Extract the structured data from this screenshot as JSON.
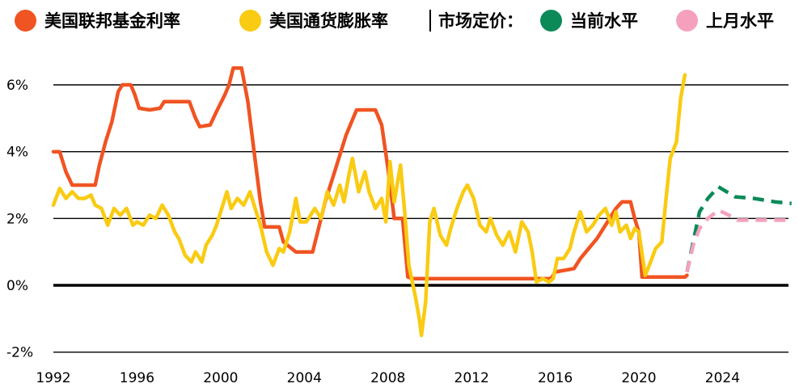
{
  "legend": {
    "fed": "美国联邦基金利率",
    "inflation": "美国通货膨胀率",
    "separator": "|",
    "market": "市场定价：",
    "current": "当前水平",
    "last_month": "上月水平"
  },
  "colors": {
    "fed": "#f05422",
    "inflation": "#f9cb12",
    "current": "#0b8a58",
    "last_month": "#f5a1bd"
  },
  "chart_data": {
    "type": "line",
    "title": "",
    "xlabel": "",
    "ylabel": "",
    "xlim": [
      1992,
      2027.3
    ],
    "ylim": [
      -2,
      6.6
    ],
    "x_ticks": [
      1992,
      1996,
      2000,
      2004,
      2008,
      2012,
      2016,
      2020,
      2024
    ],
    "y_ticks": [
      {
        "value": 6,
        "label": "6%"
      },
      {
        "value": 4,
        "label": "4%"
      },
      {
        "value": 2,
        "label": "2%"
      },
      {
        "value": 0,
        "label": "0%"
      },
      {
        "value": -2,
        "label": "-2%"
      }
    ],
    "grid": true,
    "series": [
      {
        "name": "美国联邦基金利率",
        "style": "solid",
        "points": [
          [
            1992.0,
            4.0
          ],
          [
            1992.3,
            4.0
          ],
          [
            1992.4,
            3.8
          ],
          [
            1992.6,
            3.4
          ],
          [
            1992.9,
            3.0
          ],
          [
            1993.5,
            3.0
          ],
          [
            1994.0,
            3.0
          ],
          [
            1994.2,
            3.6
          ],
          [
            1994.5,
            4.3
          ],
          [
            1994.8,
            4.9
          ],
          [
            1995.1,
            5.8
          ],
          [
            1995.3,
            6.0
          ],
          [
            1995.7,
            6.0
          ],
          [
            1995.9,
            5.7
          ],
          [
            1996.1,
            5.3
          ],
          [
            1996.6,
            5.25
          ],
          [
            1997.1,
            5.3
          ],
          [
            1997.3,
            5.5
          ],
          [
            1997.8,
            5.5
          ],
          [
            1998.5,
            5.5
          ],
          [
            1998.8,
            5.0
          ],
          [
            1999.0,
            4.75
          ],
          [
            1999.5,
            4.8
          ],
          [
            1999.8,
            5.2
          ],
          [
            2000.2,
            5.7
          ],
          [
            2000.4,
            6.0
          ],
          [
            2000.6,
            6.5
          ],
          [
            2001.0,
            6.5
          ],
          [
            2001.3,
            5.5
          ],
          [
            2001.6,
            4.0
          ],
          [
            2001.9,
            2.5
          ],
          [
            2002.1,
            1.75
          ],
          [
            2002.8,
            1.75
          ],
          [
            2003.0,
            1.3
          ],
          [
            2003.6,
            1.0
          ],
          [
            2004.1,
            1.0
          ],
          [
            2004.4,
            1.0
          ],
          [
            2004.6,
            1.5
          ],
          [
            2005.0,
            2.5
          ],
          [
            2005.5,
            3.5
          ],
          [
            2006.0,
            4.5
          ],
          [
            2006.5,
            5.25
          ],
          [
            2007.4,
            5.25
          ],
          [
            2007.7,
            4.8
          ],
          [
            2008.0,
            3.5
          ],
          [
            2008.3,
            2.0
          ],
          [
            2008.7,
            2.0
          ],
          [
            2008.95,
            0.25
          ],
          [
            2009.2,
            0.2
          ],
          [
            2015.8,
            0.2
          ],
          [
            2016.0,
            0.4
          ],
          [
            2016.9,
            0.5
          ],
          [
            2017.2,
            0.8
          ],
          [
            2017.6,
            1.1
          ],
          [
            2018.0,
            1.4
          ],
          [
            2018.5,
            1.9
          ],
          [
            2018.9,
            2.3
          ],
          [
            2019.2,
            2.5
          ],
          [
            2019.6,
            2.5
          ],
          [
            2019.8,
            2.0
          ],
          [
            2020.0,
            1.6
          ],
          [
            2020.15,
            0.25
          ],
          [
            2022.2,
            0.25
          ],
          [
            2022.3,
            0.3
          ]
        ]
      },
      {
        "name": "美国通货膨胀率",
        "style": "solid",
        "points": [
          [
            1992.0,
            2.4
          ],
          [
            1992.3,
            2.9
          ],
          [
            1992.6,
            2.6
          ],
          [
            1992.9,
            2.8
          ],
          [
            1993.2,
            2.6
          ],
          [
            1993.5,
            2.6
          ],
          [
            1993.8,
            2.7
          ],
          [
            1994.0,
            2.4
          ],
          [
            1994.3,
            2.3
          ],
          [
            1994.6,
            1.8
          ],
          [
            1994.9,
            2.3
          ],
          [
            1995.2,
            2.1
          ],
          [
            1995.5,
            2.3
          ],
          [
            1995.8,
            1.8
          ],
          [
            1996.0,
            1.9
          ],
          [
            1996.3,
            1.8
          ],
          [
            1996.6,
            2.1
          ],
          [
            1996.9,
            2.0
          ],
          [
            1997.2,
            2.4
          ],
          [
            1997.5,
            2.1
          ],
          [
            1997.8,
            1.6
          ],
          [
            1998.0,
            1.4
          ],
          [
            1998.3,
            0.9
          ],
          [
            1998.6,
            0.7
          ],
          [
            1998.8,
            1.0
          ],
          [
            1999.1,
            0.7
          ],
          [
            1999.3,
            1.2
          ],
          [
            1999.6,
            1.5
          ],
          [
            1999.8,
            1.8
          ],
          [
            2000.0,
            2.2
          ],
          [
            2000.3,
            2.8
          ],
          [
            2000.5,
            2.3
          ],
          [
            2000.8,
            2.6
          ],
          [
            2001.1,
            2.4
          ],
          [
            2001.4,
            2.8
          ],
          [
            2001.7,
            2.2
          ],
          [
            2001.9,
            1.8
          ],
          [
            2002.2,
            1.0
          ],
          [
            2002.5,
            0.6
          ],
          [
            2002.8,
            1.1
          ],
          [
            2003.0,
            1.0
          ],
          [
            2003.3,
            1.6
          ],
          [
            2003.6,
            2.6
          ],
          [
            2003.8,
            1.9
          ],
          [
            2004.1,
            1.9
          ],
          [
            2004.5,
            2.3
          ],
          [
            2004.8,
            2.0
          ],
          [
            2005.1,
            2.8
          ],
          [
            2005.4,
            2.4
          ],
          [
            2005.7,
            3.0
          ],
          [
            2005.9,
            2.5
          ],
          [
            2006.1,
            3.2
          ],
          [
            2006.3,
            3.8
          ],
          [
            2006.6,
            2.8
          ],
          [
            2006.9,
            3.4
          ],
          [
            2007.1,
            2.8
          ],
          [
            2007.4,
            2.3
          ],
          [
            2007.7,
            2.6
          ],
          [
            2007.9,
            1.9
          ],
          [
            2008.1,
            3.7
          ],
          [
            2008.3,
            2.5
          ],
          [
            2008.6,
            3.6
          ],
          [
            2008.8,
            2.2
          ],
          [
            2009.0,
            0.6
          ],
          [
            2009.3,
            -0.3
          ],
          [
            2009.5,
            -1.0
          ],
          [
            2009.6,
            -1.5
          ],
          [
            2009.8,
            -0.5
          ],
          [
            2010.0,
            1.9
          ],
          [
            2010.2,
            2.3
          ],
          [
            2010.5,
            1.5
          ],
          [
            2010.8,
            1.2
          ],
          [
            2011.0,
            1.7
          ],
          [
            2011.3,
            2.3
          ],
          [
            2011.6,
            2.8
          ],
          [
            2011.8,
            3.0
          ],
          [
            2012.1,
            2.6
          ],
          [
            2012.4,
            1.8
          ],
          [
            2012.7,
            1.6
          ],
          [
            2012.9,
            2.0
          ],
          [
            2013.2,
            1.5
          ],
          [
            2013.5,
            1.2
          ],
          [
            2013.8,
            1.6
          ],
          [
            2014.1,
            1.0
          ],
          [
            2014.4,
            1.9
          ],
          [
            2014.7,
            1.6
          ],
          [
            2014.9,
            1.0
          ],
          [
            2015.1,
            0.1
          ],
          [
            2015.4,
            0.2
          ],
          [
            2015.7,
            0.1
          ],
          [
            2015.9,
            0.2
          ],
          [
            2016.1,
            0.8
          ],
          [
            2016.4,
            0.8
          ],
          [
            2016.7,
            1.1
          ],
          [
            2016.9,
            1.6
          ],
          [
            2017.2,
            2.2
          ],
          [
            2017.5,
            1.6
          ],
          [
            2017.8,
            1.8
          ],
          [
            2018.1,
            2.1
          ],
          [
            2018.4,
            2.3
          ],
          [
            2018.7,
            1.8
          ],
          [
            2018.9,
            2.2
          ],
          [
            2019.1,
            1.6
          ],
          [
            2019.4,
            1.8
          ],
          [
            2019.6,
            1.4
          ],
          [
            2019.8,
            1.7
          ],
          [
            2020.0,
            1.6
          ],
          [
            2020.3,
            0.3
          ],
          [
            2020.5,
            0.6
          ],
          [
            2020.8,
            1.1
          ],
          [
            2021.1,
            1.3
          ],
          [
            2021.3,
            2.6
          ],
          [
            2021.5,
            3.8
          ],
          [
            2021.8,
            4.3
          ],
          [
            2022.0,
            5.6
          ],
          [
            2022.2,
            6.3
          ]
        ]
      },
      {
        "name": "当前水平",
        "style": "dashed",
        "points": [
          [
            2022.3,
            0.4
          ],
          [
            2022.6,
            1.3
          ],
          [
            2022.9,
            2.2
          ],
          [
            2023.3,
            2.6
          ],
          [
            2023.8,
            2.95
          ],
          [
            2024.2,
            2.8
          ],
          [
            2024.6,
            2.65
          ],
          [
            2025.5,
            2.6
          ],
          [
            2026.5,
            2.5
          ],
          [
            2027.3,
            2.45
          ]
        ]
      },
      {
        "name": "上月水平",
        "style": "dashed",
        "points": [
          [
            2022.3,
            0.4
          ],
          [
            2022.6,
            1.2
          ],
          [
            2022.9,
            1.7
          ],
          [
            2023.3,
            2.0
          ],
          [
            2023.8,
            2.25
          ],
          [
            2024.3,
            2.1
          ],
          [
            2024.7,
            1.95
          ],
          [
            2025.5,
            1.95
          ],
          [
            2026.5,
            1.95
          ],
          [
            2027.3,
            1.95
          ]
        ]
      }
    ]
  }
}
